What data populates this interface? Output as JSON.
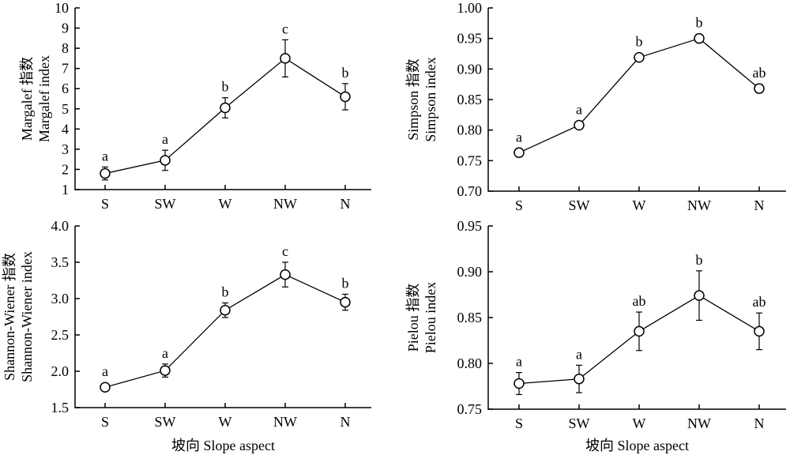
{
  "chart_data": [
    {
      "type": "line",
      "categories": [
        "S",
        "SW",
        "W",
        "NW",
        "N"
      ],
      "ylabel_cn": "Margalef 指数",
      "ylabel_en": "Margalef index",
      "xlabel": "",
      "ylim": [
        1,
        10
      ],
      "yticks": [
        "1",
        "2",
        "3",
        "4",
        "5",
        "6",
        "7",
        "8",
        "9",
        "10"
      ],
      "values": [
        1.8,
        2.45,
        5.05,
        7.5,
        5.6
      ],
      "errors": [
        0.32,
        0.5,
        0.5,
        0.92,
        0.65
      ],
      "letters": [
        "a",
        "a",
        "b",
        "c",
        "b"
      ]
    },
    {
      "type": "line",
      "categories": [
        "S",
        "SW",
        "W",
        "NW",
        "N"
      ],
      "ylabel_cn": "Simpson 指数",
      "ylabel_en": "Simpson index",
      "xlabel": "",
      "ylim": [
        0.7,
        1.0
      ],
      "yticks": [
        "0.70",
        "0.75",
        "0.80",
        "0.85",
        "0.90",
        "0.95",
        "1.00"
      ],
      "values": [
        0.763,
        0.808,
        0.919,
        0.95,
        0.868
      ],
      "errors": [
        0.007,
        0.004,
        0.006,
        0.006,
        0.007
      ],
      "letters": [
        "a",
        "a",
        "b",
        "b",
        "ab"
      ]
    },
    {
      "type": "line",
      "categories": [
        "S",
        "SW",
        "W",
        "NW",
        "N"
      ],
      "ylabel_cn": "Shannon-Wiener 指数",
      "ylabel_en": "Shannon-Wiener index",
      "xlabel": "坡向 Slope aspect",
      "ylim": [
        1.5,
        4.0
      ],
      "yticks": [
        "1.5",
        "2.0",
        "2.5",
        "3.0",
        "3.5",
        "4.0"
      ],
      "values": [
        1.78,
        2.01,
        2.84,
        3.33,
        2.95
      ],
      "errors": [
        0.03,
        0.09,
        0.1,
        0.17,
        0.11
      ],
      "letters": [
        "a",
        "a",
        "b",
        "c",
        "b"
      ]
    },
    {
      "type": "line",
      "categories": [
        "S",
        "SW",
        "W",
        "NW",
        "N"
      ],
      "ylabel_cn": "Pielou 指数",
      "ylabel_en": "Pielou index",
      "xlabel": "坡向 Slope aspect",
      "ylim": [
        0.75,
        0.95
      ],
      "yticks": [
        "0.75",
        "0.80",
        "0.85",
        "0.90",
        "0.95"
      ],
      "values": [
        0.778,
        0.783,
        0.835,
        0.874,
        0.835
      ],
      "errors": [
        0.012,
        0.015,
        0.021,
        0.027,
        0.02
      ],
      "letters": [
        "a",
        "a",
        "ab",
        "b",
        "ab"
      ]
    }
  ]
}
